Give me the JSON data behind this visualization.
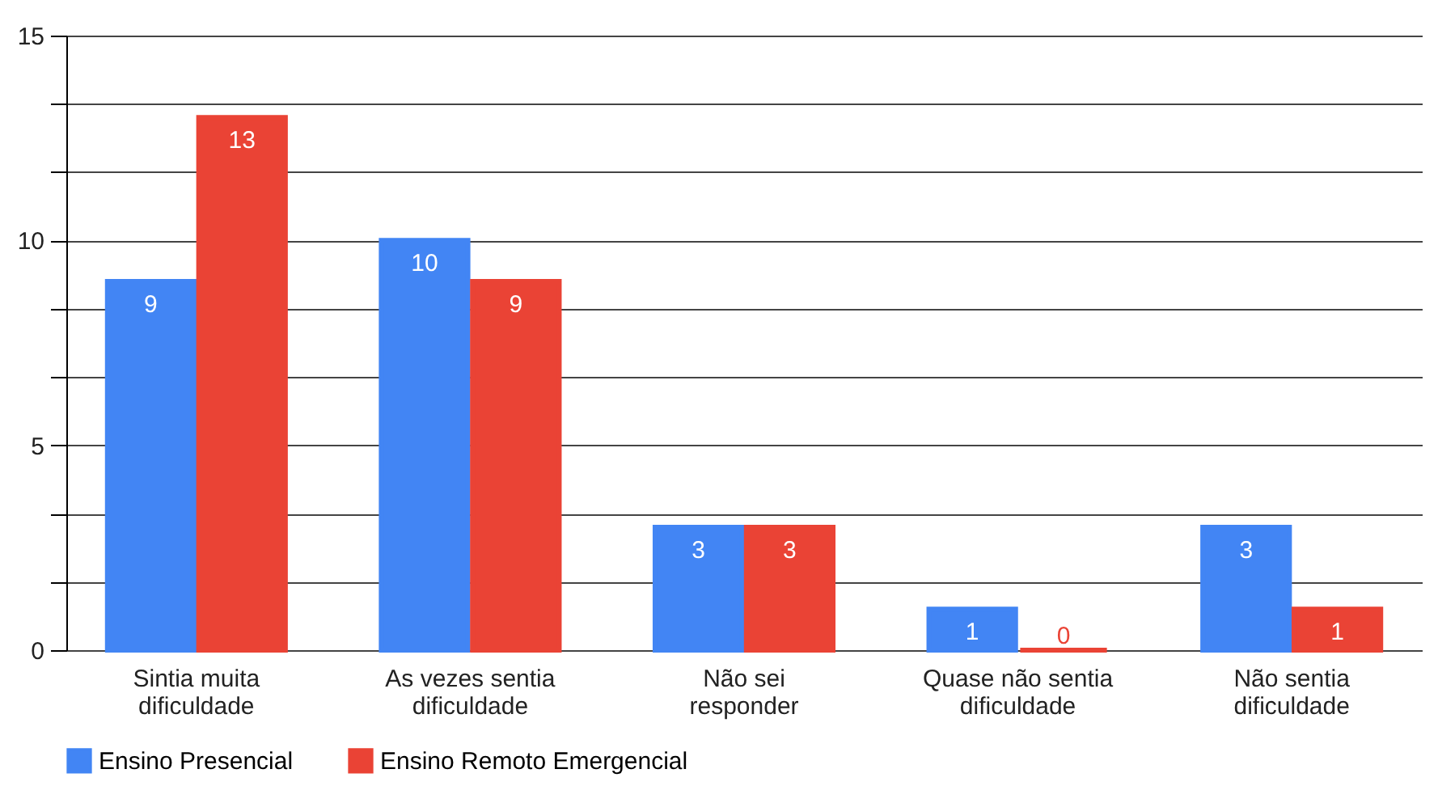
{
  "chart_data": {
    "type": "bar",
    "categories": [
      "Sintia muita dificuldade",
      "As vezes sentia dificuldade",
      "Não sei responder",
      "Quase não sentia dificuldade",
      "Não sentia dificuldade"
    ],
    "series": [
      {
        "name": "Ensino Presencial",
        "color": "#4285f4",
        "values": [
          9,
          10,
          3,
          1,
          3
        ]
      },
      {
        "name": "Ensino Remoto Emergencial",
        "color": "#ea4335",
        "values": [
          13,
          9,
          3,
          0,
          1
        ]
      }
    ],
    "ylim": [
      0,
      15
    ],
    "yticks": [
      0,
      {
        "value": 1.667,
        "label": null
      },
      {
        "value": 3.333,
        "label": null
      },
      5,
      {
        "value": 6.667,
        "label": null
      },
      {
        "value": 8.333,
        "label": null
      },
      10,
      {
        "value": 11.667,
        "label": null
      },
      {
        "value": 13.333,
        "label": null
      },
      15
    ],
    "grid": "y",
    "legend": "bottom",
    "data_labels": true
  }
}
